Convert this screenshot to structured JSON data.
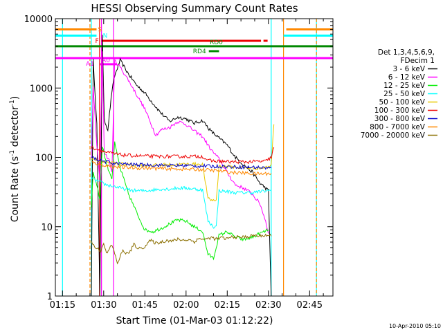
{
  "chart_data": {
    "type": "line",
    "title": "HESSI Observing Summary Count Rates",
    "xlabel": "Start Time (01-Mar-03 01:12:22)",
    "ylabel_main": "Count Rate (s",
    "ylabel_sup1": "-1",
    "ylabel_mid": " detector",
    "ylabel_sup2": "-1",
    "ylabel_end": ")",
    "x_scale": "time",
    "y_scale": "log",
    "xlim": [
      72.4,
      173.5
    ],
    "ylim": [
      1,
      10000
    ],
    "x_ticks": [
      {
        "label": "01:15",
        "value": 75
      },
      {
        "label": "01:30",
        "value": 90
      },
      {
        "label": "01:45",
        "value": 105
      },
      {
        "label": "02:00",
        "value": 120
      },
      {
        "label": "02:15",
        "value": 135
      },
      {
        "label": "02:30",
        "value": 150
      },
      {
        "label": "02:45",
        "value": 165
      }
    ],
    "y_ticks": [
      {
        "label": "1",
        "value": 1
      },
      {
        "label": "10",
        "value": 10
      },
      {
        "label": "100",
        "value": 100
      },
      {
        "label": "1000",
        "value": 1000
      },
      {
        "label": "10000",
        "value": 10000
      }
    ],
    "legend": {
      "placement": "right",
      "header": [
        "Det 1,3,4,5,6,9,",
        "FDecim 1"
      ]
    },
    "series": [
      {
        "name": "3 - 6 keV",
        "color": "#000000",
        "points": [
          [
            85.5,
            1
          ],
          [
            86.2,
            2500
          ],
          [
            87.5,
            300
          ],
          [
            88.6,
            1
          ],
          [
            89.5,
            6000
          ],
          [
            90.2,
            350
          ],
          [
            91.5,
            250
          ],
          [
            93,
            900
          ],
          [
            94,
            1500
          ],
          [
            96,
            2500
          ],
          [
            99,
            1600
          ],
          [
            102,
            1100
          ],
          [
            105,
            850
          ],
          [
            108,
            600
          ],
          [
            111,
            430
          ],
          [
            114,
            330
          ],
          [
            117,
            380
          ],
          [
            120,
            360
          ],
          [
            123,
            310
          ],
          [
            126,
            340
          ],
          [
            129,
            240
          ],
          [
            132,
            190
          ],
          [
            135,
            150
          ],
          [
            138,
            100
          ],
          [
            141,
            78
          ],
          [
            144,
            62
          ],
          [
            147,
            42
          ],
          [
            149,
            36
          ],
          [
            150,
            33
          ],
          [
            151,
            1
          ]
        ]
      },
      {
        "name": "6 - 12 keV",
        "color": "#ff00ff",
        "points": [
          [
            85.5,
            100
          ],
          [
            86.2,
            1000
          ],
          [
            87.5,
            150
          ],
          [
            88.6,
            45
          ],
          [
            89.5,
            3500
          ],
          [
            90.2,
            120
          ],
          [
            92,
            90
          ],
          [
            93,
            60
          ],
          [
            94,
            2500
          ],
          [
            96,
            2000
          ],
          [
            99,
            1300
          ],
          [
            102,
            800
          ],
          [
            105,
            500
          ],
          [
            107,
            320
          ],
          [
            109,
            210
          ],
          [
            111,
            250
          ],
          [
            114,
            270
          ],
          [
            117,
            330
          ],
          [
            120,
            300
          ],
          [
            123,
            240
          ],
          [
            126,
            200
          ],
          [
            129,
            130
          ],
          [
            132,
            95
          ],
          [
            135,
            60
          ],
          [
            138,
            40
          ],
          [
            141,
            36
          ],
          [
            144,
            30
          ],
          [
            147,
            21
          ],
          [
            149,
            12
          ],
          [
            150,
            8
          ]
        ]
      },
      {
        "name": "12 - 25 keV",
        "color": "#00ee00",
        "points": [
          [
            85.5,
            20
          ],
          [
            86.2,
            60
          ],
          [
            87.5,
            40
          ],
          [
            88.6,
            25
          ],
          [
            89.5,
            150
          ],
          [
            91,
            80
          ],
          [
            93,
            50
          ],
          [
            94,
            160
          ],
          [
            96,
            70
          ],
          [
            99,
            30
          ],
          [
            102,
            16
          ],
          [
            105,
            9
          ],
          [
            108,
            8.5
          ],
          [
            111,
            9.5
          ],
          [
            114,
            11
          ],
          [
            117,
            12.5
          ],
          [
            120,
            12
          ],
          [
            123,
            10
          ],
          [
            126,
            8.5
          ],
          [
            128,
            4
          ],
          [
            130,
            3.5
          ],
          [
            132,
            7.5
          ],
          [
            135,
            8.5
          ],
          [
            138,
            7
          ],
          [
            141,
            6.5
          ],
          [
            144,
            7
          ],
          [
            147,
            8
          ],
          [
            150,
            9
          ]
        ]
      },
      {
        "name": "25 - 50 keV",
        "color": "#00ffff",
        "points": [
          [
            85.5,
            50
          ],
          [
            88,
            45
          ],
          [
            91,
            40
          ],
          [
            94,
            38
          ],
          [
            96,
            36
          ],
          [
            99,
            34
          ],
          [
            102,
            33
          ],
          [
            105,
            33
          ],
          [
            108,
            34
          ],
          [
            111,
            35
          ],
          [
            114,
            35
          ],
          [
            117,
            36
          ],
          [
            120,
            36
          ],
          [
            123,
            35
          ],
          [
            126,
            34
          ],
          [
            128,
            12
          ],
          [
            130,
            10
          ],
          [
            131,
            10
          ],
          [
            132,
            33
          ],
          [
            135,
            32
          ],
          [
            138,
            31
          ],
          [
            141,
            31
          ],
          [
            144,
            31
          ],
          [
            147,
            32
          ],
          [
            150,
            33
          ],
          [
            151,
            34
          ]
        ]
      },
      {
        "name": "50 - 100 keV",
        "color": "#e8c800",
        "points": [
          [
            85.5,
            95
          ],
          [
            88,
            90
          ],
          [
            91,
            85
          ],
          [
            94,
            82
          ],
          [
            97,
            80
          ],
          [
            100,
            78
          ],
          [
            103,
            77
          ],
          [
            106,
            77
          ],
          [
            109,
            77
          ],
          [
            112,
            78
          ],
          [
            115,
            78
          ],
          [
            118,
            79
          ],
          [
            121,
            80
          ],
          [
            124,
            80
          ],
          [
            126,
            80
          ],
          [
            128,
            25
          ],
          [
            130,
            24
          ],
          [
            131,
            24
          ],
          [
            132,
            75
          ],
          [
            135,
            74
          ],
          [
            138,
            72
          ],
          [
            141,
            71
          ],
          [
            144,
            70
          ],
          [
            147,
            70
          ],
          [
            150,
            72
          ],
          [
            151,
            80
          ],
          [
            152,
            300
          ]
        ]
      },
      {
        "name": "100 - 300 keV",
        "color": "#ee0000",
        "points": [
          [
            85.5,
            140
          ],
          [
            88,
            130
          ],
          [
            91,
            118
          ],
          [
            94,
            112
          ],
          [
            97,
            108
          ],
          [
            100,
            106
          ],
          [
            103,
            105
          ],
          [
            106,
            104
          ],
          [
            109,
            103
          ],
          [
            112,
            103
          ],
          [
            115,
            103
          ],
          [
            118,
            103
          ],
          [
            121,
            103
          ],
          [
            124,
            103
          ],
          [
            126,
            103
          ],
          [
            128,
            90
          ],
          [
            131,
            88
          ],
          [
            134,
            87
          ],
          [
            137,
            86
          ],
          [
            140,
            86
          ],
          [
            143,
            86
          ],
          [
            146,
            87
          ],
          [
            149,
            88
          ],
          [
            151,
            100
          ],
          [
            152,
            140
          ]
        ]
      },
      {
        "name": "300 - 800 keV",
        "color": "#0000cc",
        "points": [
          [
            85.5,
            100
          ],
          [
            88,
            92
          ],
          [
            91,
            86
          ],
          [
            94,
            82
          ],
          [
            97,
            80
          ],
          [
            100,
            79
          ],
          [
            103,
            78
          ],
          [
            106,
            78
          ],
          [
            109,
            77
          ],
          [
            112,
            77
          ],
          [
            115,
            76
          ],
          [
            118,
            76
          ],
          [
            121,
            76
          ],
          [
            124,
            75
          ],
          [
            127,
            75
          ],
          [
            130,
            74
          ],
          [
            133,
            74
          ],
          [
            136,
            73
          ],
          [
            139,
            73
          ],
          [
            142,
            72
          ],
          [
            145,
            72
          ],
          [
            148,
            71
          ],
          [
            151,
            70
          ]
        ]
      },
      {
        "name": "800 - 7000 keV",
        "color": "#ff8800",
        "points": [
          [
            85.5,
            85
          ],
          [
            88,
            80
          ],
          [
            91,
            76
          ],
          [
            94,
            73
          ],
          [
            97,
            72
          ],
          [
            100,
            71
          ],
          [
            103,
            70
          ],
          [
            106,
            70
          ],
          [
            109,
            69
          ],
          [
            112,
            69
          ],
          [
            115,
            68
          ],
          [
            118,
            68
          ],
          [
            121,
            67
          ],
          [
            124,
            67
          ],
          [
            127,
            66
          ],
          [
            130,
            65
          ],
          [
            133,
            63
          ],
          [
            136,
            61
          ],
          [
            139,
            60
          ],
          [
            142,
            59
          ],
          [
            145,
            58
          ],
          [
            148,
            58
          ],
          [
            151,
            59
          ]
        ]
      },
      {
        "name": "7000 - 20000 keV",
        "color": "#8b6f00",
        "points": [
          [
            85.5,
            6
          ],
          [
            87,
            5
          ],
          [
            89,
            4.5
          ],
          [
            90,
            6
          ],
          [
            91,
            4
          ],
          [
            93,
            5.5
          ],
          [
            95,
            3
          ],
          [
            97,
            4.5
          ],
          [
            99,
            4
          ],
          [
            101,
            5.5
          ],
          [
            103,
            4.8
          ],
          [
            105,
            5.2
          ],
          [
            107,
            6.3
          ],
          [
            109,
            5.8
          ],
          [
            111,
            6
          ],
          [
            113,
            6.4
          ],
          [
            115,
            6.2
          ],
          [
            117,
            6.6
          ],
          [
            119,
            6.4
          ],
          [
            121,
            6.5
          ],
          [
            123,
            6.1
          ],
          [
            125,
            6.8
          ],
          [
            127,
            6.5
          ],
          [
            129,
            7
          ],
          [
            131,
            6.6
          ],
          [
            133,
            6.9
          ],
          [
            135,
            6.7
          ],
          [
            137,
            7.2
          ],
          [
            139,
            7
          ],
          [
            141,
            7.1
          ],
          [
            143,
            7.2
          ],
          [
            145,
            7.5
          ],
          [
            147,
            7.3
          ],
          [
            149,
            7.6
          ],
          [
            151,
            7.3
          ]
        ]
      }
    ],
    "flags": [
      {
        "label": "S",
        "color": "#ff8800",
        "t0": 72.4,
        "t1": 87.4,
        "level": 7000,
        "label_at": "right",
        "label_time": 87.4
      },
      {
        "label": "S",
        "color": "#ff8800",
        "t0": 156.5,
        "t1": 173.5,
        "level": 7000,
        "label_at": "none",
        "label_time": 156.5
      },
      {
        "label": "N",
        "color": "#00ffff",
        "t0": 72.4,
        "t1": 87.4,
        "level": 5700,
        "label_at": "right",
        "label_time": 89.2
      },
      {
        "label": "N",
        "color": "#00ffff",
        "t0": 155.5,
        "t1": 173.5,
        "level": 5700,
        "label_at": "none",
        "label_time": 155.5
      },
      {
        "label": "F",
        "color": "#ee0000",
        "t0": 89.2,
        "t1": 147.3,
        "level": 4800,
        "label_at": "left",
        "label_time": 89.2
      },
      {
        "label": "F",
        "color": "#ee0000",
        "t0": 148.2,
        "t1": 149.7,
        "level": 4800,
        "label_at": "none",
        "label_time": 148.2
      },
      {
        "label": "RD0",
        "color": "#008800",
        "t0": 72.4,
        "t1": 173.5,
        "level": 4000,
        "label_at": "above",
        "label_time": 131
      },
      {
        "label": "RD4",
        "color": "#008800",
        "t0": 128.3,
        "t1": 132,
        "level": 3400,
        "label_at": "left",
        "label_time": 128.3
      },
      {
        "label": "A1",
        "color": "#ff00ff",
        "t0": 72.4,
        "t1": 173.5,
        "level": 2700,
        "label_at": "below",
        "label_time": 85
      },
      {
        "label": "A0",
        "color": "#ff00ff",
        "t0": 88.7,
        "t1": 94.8,
        "level": 2200,
        "label_at": "above",
        "label_time": 90.8
      }
    ],
    "vertical_markers": [
      {
        "time": 85.5,
        "color": "#00ffff",
        "style": "solid"
      },
      {
        "time": 85,
        "color": "#ff8800",
        "style": "dashed"
      },
      {
        "time": 88.5,
        "color": "#ee0000",
        "style": "solid"
      },
      {
        "time": 89.2,
        "color": "#ff00ff",
        "style": "solid"
      },
      {
        "time": 93.6,
        "color": "#ff00ff",
        "style": "solid"
      },
      {
        "time": 75,
        "color": "#00ffff",
        "style": "solid"
      },
      {
        "time": 151,
        "color": "#00ffff",
        "style": "solid"
      },
      {
        "time": 155.5,
        "color": "#ff8800",
        "style": "solid"
      },
      {
        "time": 167.5,
        "color": "#00ffff",
        "style": "solid"
      },
      {
        "time": 167.5,
        "color": "#ff8800",
        "style": "dashed"
      }
    ]
  },
  "footer_timestamp": "10-Apr-2010 05:10"
}
